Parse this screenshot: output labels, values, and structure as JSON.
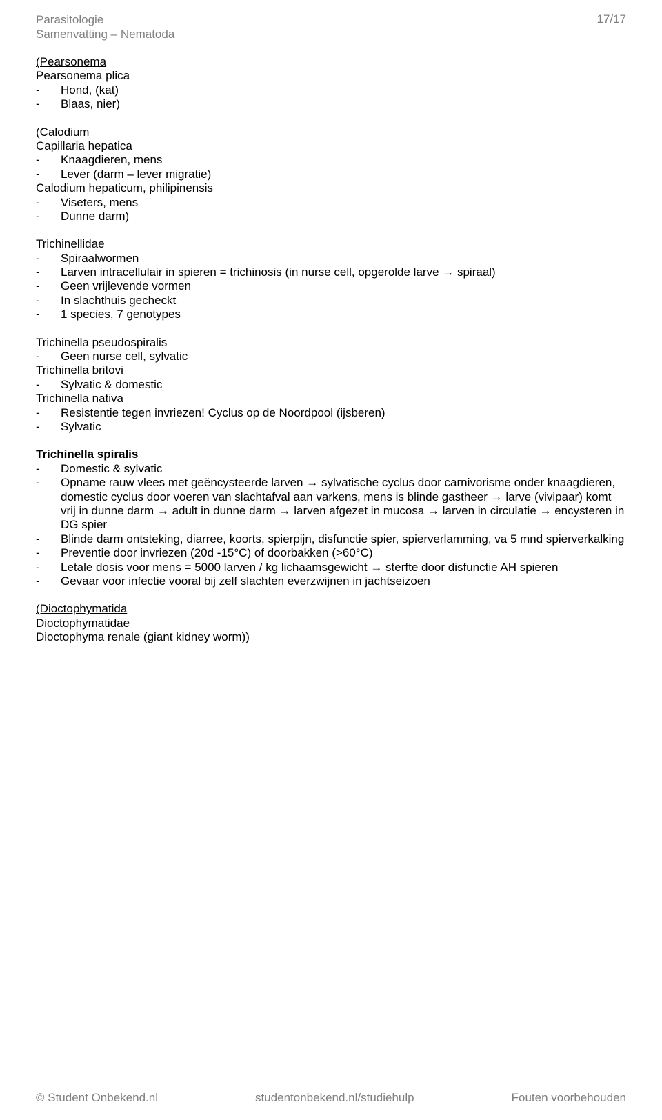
{
  "header": {
    "left_line1": "Parasitologie",
    "left_line2": "Samenvatting – Nematoda",
    "right": "17/17"
  },
  "colors": {
    "text": "#000000",
    "muted": "#808080",
    "background": "#ffffff"
  },
  "typography": {
    "font_family": "Arial",
    "font_size_pt": 13,
    "line_height": 1.2
  },
  "sections": [
    {
      "lines": [
        {
          "text": "(Pearsonema",
          "underline": true
        },
        {
          "text": "Pearsonema plica"
        },
        {
          "bullet": "-",
          "text": "Hond, (kat)"
        },
        {
          "bullet": "-",
          "text": "Blaas, nier)"
        }
      ]
    },
    {
      "lines": [
        {
          "text": "(Calodium",
          "underline": true
        },
        {
          "text": "Capillaria hepatica"
        },
        {
          "bullet": "-",
          "text": "Knaagdieren, mens"
        },
        {
          "bullet": "-",
          "text": "Lever (darm – lever migratie)"
        },
        {
          "text": "Calodium hepaticum, philipinensis"
        },
        {
          "bullet": "-",
          "text": "Viseters, mens"
        },
        {
          "bullet": "-",
          "text": "Dunne darm)"
        }
      ]
    },
    {
      "lines": [
        {
          "text": "Trichinellidae"
        },
        {
          "bullet": "-",
          "text": "Spiraalwormen"
        },
        {
          "bullet": "-",
          "text": "Larven intracellulair in spieren = trichinosis (in nurse cell, opgerolde larve → spiraal)"
        },
        {
          "bullet": "-",
          "text": "Geen vrijlevende vormen"
        },
        {
          "bullet": "-",
          "text": "In slachthuis gecheckt"
        },
        {
          "bullet": "-",
          "text": "1 species, 7 genotypes"
        }
      ],
      "gap_before": true
    },
    {
      "lines": [
        {
          "text": "Trichinella pseudospiralis"
        },
        {
          "bullet": "-",
          "text": "Geen nurse cell, sylvatic"
        },
        {
          "text": "Trichinella britovi"
        },
        {
          "bullet": "-",
          "text": "Sylvatic & domestic"
        },
        {
          "text": "Trichinella nativa"
        },
        {
          "bullet": "-",
          "text": "Resistentie tegen invriezen! Cyclus op de Noordpool (ijsberen)"
        },
        {
          "bullet": "-",
          "text": "Sylvatic"
        }
      ]
    },
    {
      "lines": [
        {
          "text": "Trichinella spiralis",
          "bold": true
        },
        {
          "bullet": "-",
          "text": "Domestic & sylvatic"
        },
        {
          "bullet": "-",
          "text": "Opname rauw vlees met geëncysteerde larven → sylvatische cyclus door carnivorisme onder knaagdieren, domestic cyclus door voeren van slachtafval aan varkens, mens is blinde gastheer → larve (vivipaar) komt vrij in dunne darm → adult in dunne darm → larven afgezet in mucosa → larven in circulatie → encysteren in DG spier"
        },
        {
          "bullet": "-",
          "text": "Blinde darm ontsteking, diarree, koorts, spierpijn, disfunctie spier, spierverlamming, va 5 mnd spierverkalking"
        },
        {
          "bullet": "-",
          "text": "Preventie door invriezen (20d -15°C) of doorbakken (>60°C)"
        },
        {
          "bullet": "-",
          "text": "Letale dosis voor mens = 5000 larven / kg lichaamsgewicht → sterfte door disfunctie AH spieren"
        },
        {
          "bullet": "-",
          "text": "Gevaar voor infectie vooral bij zelf slachten everzwijnen in jachtseizoen"
        }
      ]
    },
    {
      "lines": [
        {
          "text": "(Dioctophymatida",
          "underline": true
        },
        {
          "text": "Dioctophymatidae"
        },
        {
          "text": "Dioctophyma renale (giant kidney worm))"
        }
      ],
      "gap_before": true
    }
  ],
  "footer": {
    "left": "© Student Onbekend.nl",
    "center": "studentonbekend.nl/studiehulp",
    "right": "Fouten voorbehouden"
  }
}
